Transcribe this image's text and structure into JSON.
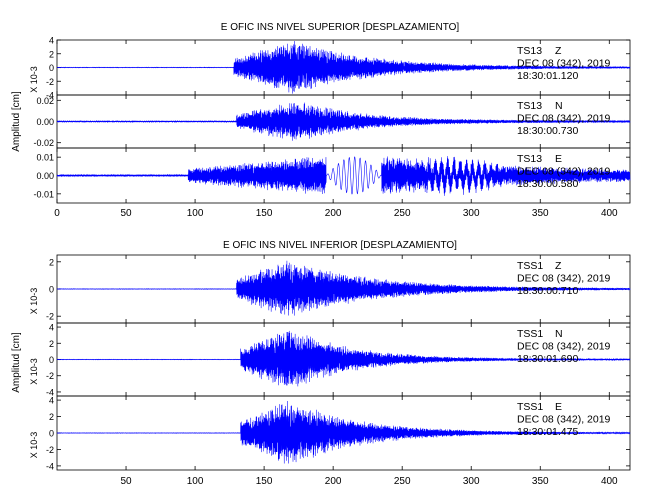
{
  "colors": {
    "trace": "#0000ff",
    "axis": "#000000",
    "background": "#ffffff"
  },
  "chart_data": [
    {
      "type": "line",
      "title": "E OFIC INS NIVEL SUPERIOR [DESPLAZAMIENTO]",
      "xlabel": "",
      "ylabel": "Amplitud [cm]",
      "xlim": [
        0,
        415
      ],
      "xticks": [
        0,
        50,
        100,
        150,
        200,
        250,
        300,
        350,
        400
      ],
      "x_tick_labels_shown": true,
      "panels": [
        {
          "station": "TS13",
          "component": "Z",
          "date": "DEC 08 (342), 2019",
          "time": "18:30:01.120",
          "ylim": [
            -4,
            4
          ],
          "yticks": [
            -4,
            -2,
            0,
            2,
            4
          ],
          "tick_labels": [
            "4",
            "2",
            "0",
            "-2",
            "-4"
          ],
          "scale_label": "X 10-3",
          "envelope": {
            "start": 128,
            "peak_time": 172,
            "peak": 4.0,
            "decay": 55,
            "pre_noise": 0.04
          }
        },
        {
          "station": "TS13",
          "component": "N",
          "date": "DEC 08 (342), 2019",
          "time": "18:30:00.730",
          "ylim": [
            -0.025,
            0.025
          ],
          "yticks": [
            -0.02,
            0.0,
            0.02
          ],
          "tick_labels": [
            "0.02",
            "0.00",
            "-0.02"
          ],
          "scale_label": "",
          "envelope": {
            "start": 130,
            "peak_time": 174,
            "peak": 0.02,
            "decay": 45,
            "pre_noise": 0.0005
          }
        },
        {
          "station": "TS13",
          "component": "E",
          "date": "DEC 08 (342), 2019",
          "time": "18:30:00.580",
          "ylim": [
            -0.015,
            0.015
          ],
          "yticks": [
            -0.01,
            0.0,
            0.01
          ],
          "tick_labels": [
            "0.01",
            "0.00",
            "-0.01"
          ],
          "scale_label": "",
          "envelope": {
            "start": 95,
            "peak_time": 210,
            "peak": 0.012,
            "decay": 120,
            "pre_noise": 0.0006
          }
        }
      ]
    },
    {
      "type": "line",
      "title": "E OFIC INS NIVEL INFERIOR [DESPLAZAMIENTO]",
      "xlabel": "",
      "ylabel": "Amplitud [cm]",
      "xlim": [
        0,
        415
      ],
      "xticks": [
        50,
        100,
        150,
        200,
        250,
        300,
        350,
        400
      ],
      "x_tick_labels_shown": true,
      "panels": [
        {
          "station": "TSS1",
          "component": "Z",
          "date": "DEC 08 (342), 2019",
          "time": "18:30:00.710",
          "ylim": [
            -2.5,
            2.5
          ],
          "yticks": [
            -2,
            0,
            2
          ],
          "tick_labels": [
            "2",
            "0",
            "-2"
          ],
          "scale_label": "X 10-3",
          "envelope": {
            "start": 130,
            "peak_time": 168,
            "peak": 2.2,
            "decay": 60,
            "pre_noise": 0.02
          }
        },
        {
          "station": "TSS1",
          "component": "N",
          "date": "DEC 08 (342), 2019",
          "time": "18:30:01.690",
          "ylim": [
            -4.5,
            4.5
          ],
          "yticks": [
            -4,
            -2,
            0,
            2,
            4
          ],
          "tick_labels": [
            "4",
            "2",
            "0",
            "-2",
            "-4"
          ],
          "scale_label": "X 10-3",
          "envelope": {
            "start": 133,
            "peak_time": 168,
            "peak": 4.0,
            "decay": 45,
            "pre_noise": 0.03
          }
        },
        {
          "station": "TSS1",
          "component": "E",
          "date": "DEC 08 (342), 2019",
          "time": "18:30:01.475",
          "ylim": [
            -4.5,
            4.5
          ],
          "yticks": [
            -4,
            -2,
            0,
            2,
            4
          ],
          "tick_labels": [
            "4",
            "2",
            "0",
            "-2",
            "-4"
          ],
          "scale_label": "X 10-3",
          "envelope": {
            "start": 133,
            "peak_time": 168,
            "peak": 4.2,
            "decay": 50,
            "pre_noise": 0.03
          }
        }
      ]
    }
  ]
}
